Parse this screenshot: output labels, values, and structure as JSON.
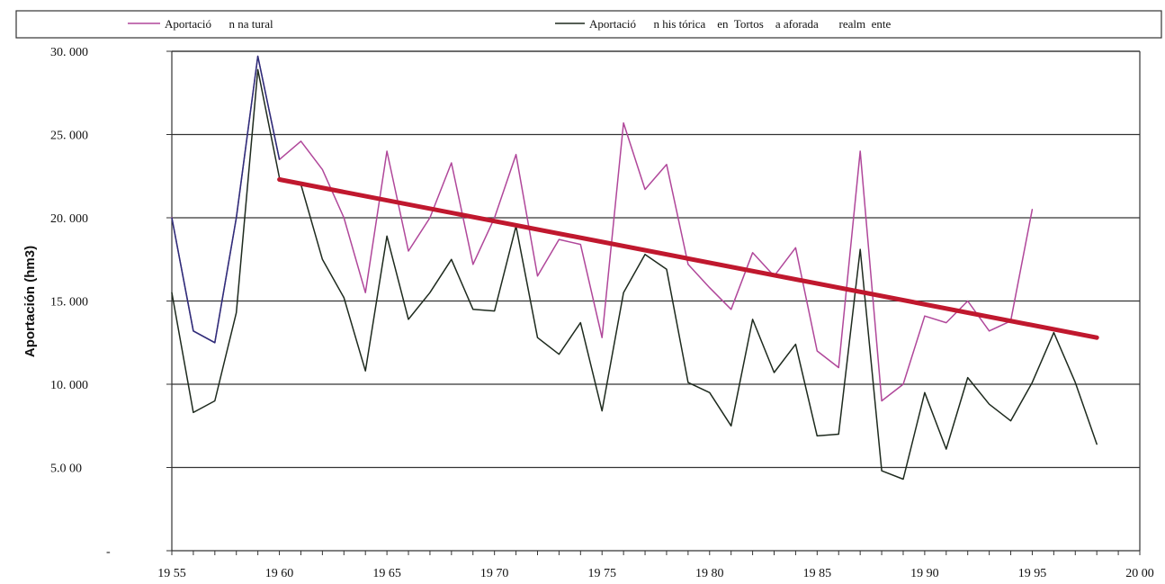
{
  "chart_data": {
    "type": "line",
    "title": "",
    "xlabel": "",
    "ylabel": "Aportación (hm3)",
    "xlim": [
      1955,
      2000
    ],
    "ylim": [
      0,
      30000
    ],
    "grid": "horizontal",
    "legend_position": "top",
    "x_tick_labels": [
      "19 55",
      "19 60",
      "19 65",
      "19 70",
      "19 75",
      "19 80",
      "19 85",
      "19 90",
      "19 95",
      "20 00"
    ],
    "y_tick_labels": [
      "-",
      "5.0 00",
      "10. 000",
      "15. 000",
      "20. 000",
      "25. 000",
      "30. 000"
    ],
    "legend": [
      {
        "label": "Aportació      n na tural",
        "color": "#b0479a"
      },
      {
        "label": "Aportació      n his tórica    en  Tortos    a aforada       realm  ente",
        "color": "#1e2a1e"
      }
    ],
    "series": [
      {
        "name": "Aportació      n na tural",
        "color": "#b0479a",
        "x": [
          1955,
          1956,
          1957,
          1958,
          1959,
          1960,
          1961,
          1962,
          1963,
          1964,
          1965,
          1966,
          1967,
          1968,
          1969,
          1970,
          1971,
          1972,
          1973,
          1974,
          1975,
          1976,
          1977,
          1978,
          1979,
          1980,
          1981,
          1982,
          1983,
          1984,
          1985,
          1986,
          1987,
          1988,
          1989,
          1990,
          1991,
          1992,
          1993,
          1994,
          1995
        ],
        "y": [
          20000,
          13200,
          12500,
          20000,
          29700,
          23500,
          24600,
          22900,
          20000,
          15500,
          24000,
          18000,
          20000,
          23300,
          17200,
          20000,
          23800,
          16500,
          18700,
          18400,
          12800,
          25700,
          21700,
          23200,
          17200,
          15800,
          14500,
          17900,
          16500,
          18200,
          12000,
          11000,
          24000,
          9000,
          10000,
          14100,
          13700,
          15000,
          13200,
          13800,
          20500
        ]
      },
      {
        "name": "Aportació      n his tórica    en  Tortos    a aforada       realm  ente",
        "color": "#1e2a1e",
        "x": [
          1955,
          1956,
          1957,
          1958,
          1959,
          1960,
          1961,
          1962,
          1963,
          1964,
          1965,
          1966,
          1967,
          1968,
          1969,
          1970,
          1971,
          1972,
          1973,
          1974,
          1975,
          1976,
          1977,
          1978,
          1979,
          1980,
          1981,
          1982,
          1983,
          1984,
          1985,
          1986,
          1987,
          1988,
          1989,
          1990,
          1991,
          1992,
          1993,
          1994,
          1995,
          1996,
          1997,
          1998
        ],
        "y": [
          15500,
          8300,
          9000,
          14300,
          28900,
          22400,
          22000,
          17500,
          15200,
          10800,
          18900,
          13900,
          15500,
          17500,
          14500,
          14400,
          19500,
          12800,
          11800,
          13700,
          8400,
          15500,
          17800,
          16900,
          10100,
          9500,
          7500,
          13900,
          10700,
          12400,
          6900,
          7000,
          18100,
          4800,
          4300,
          9500,
          6100,
          10400,
          8800,
          7800,
          10100,
          13100,
          10100,
          6400
        ]
      },
      {
        "color": "#c0182e",
        "x": [
          1960,
          1998
        ],
        "y": [
          22300,
          12800
        ]
      }
    ]
  }
}
